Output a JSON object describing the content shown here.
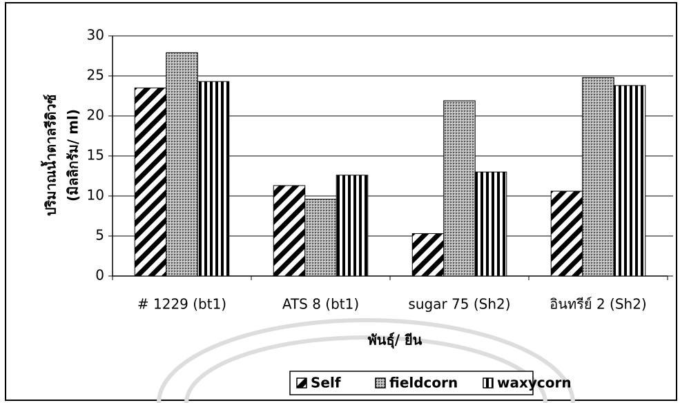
{
  "chart_data": {
    "type": "bar",
    "xlabel": "พันธุ์/ ยีน",
    "ylabel": [
      "ปริมาณน้ำตาลรีดิวซ์",
      "(มิลลิกรัม/ ml)"
    ],
    "categories": [
      "# 1229 (bt1)",
      "ATS 8 (bt1)",
      "sugar 75 (Sh2)",
      "อินทรีย์ 2 (Sh2)"
    ],
    "series": [
      {
        "name": "Self",
        "color": "#000000",
        "pattern": "diagonal",
        "values": [
          23.5,
          11.3,
          5.3,
          10.6
        ]
      },
      {
        "name": "fieldcorn",
        "color": "#000000",
        "pattern": "dots",
        "values": [
          27.9,
          9.6,
          21.9,
          24.8
        ]
      },
      {
        "name": "waxycorn",
        "color": "#000000",
        "pattern": "vertical",
        "values": [
          24.3,
          12.6,
          13.0,
          23.8
        ]
      }
    ],
    "ylim": [
      0,
      30
    ],
    "yticks": [
      0,
      5,
      10,
      15,
      20,
      25,
      30
    ],
    "grid": true,
    "legend": "bottom"
  }
}
